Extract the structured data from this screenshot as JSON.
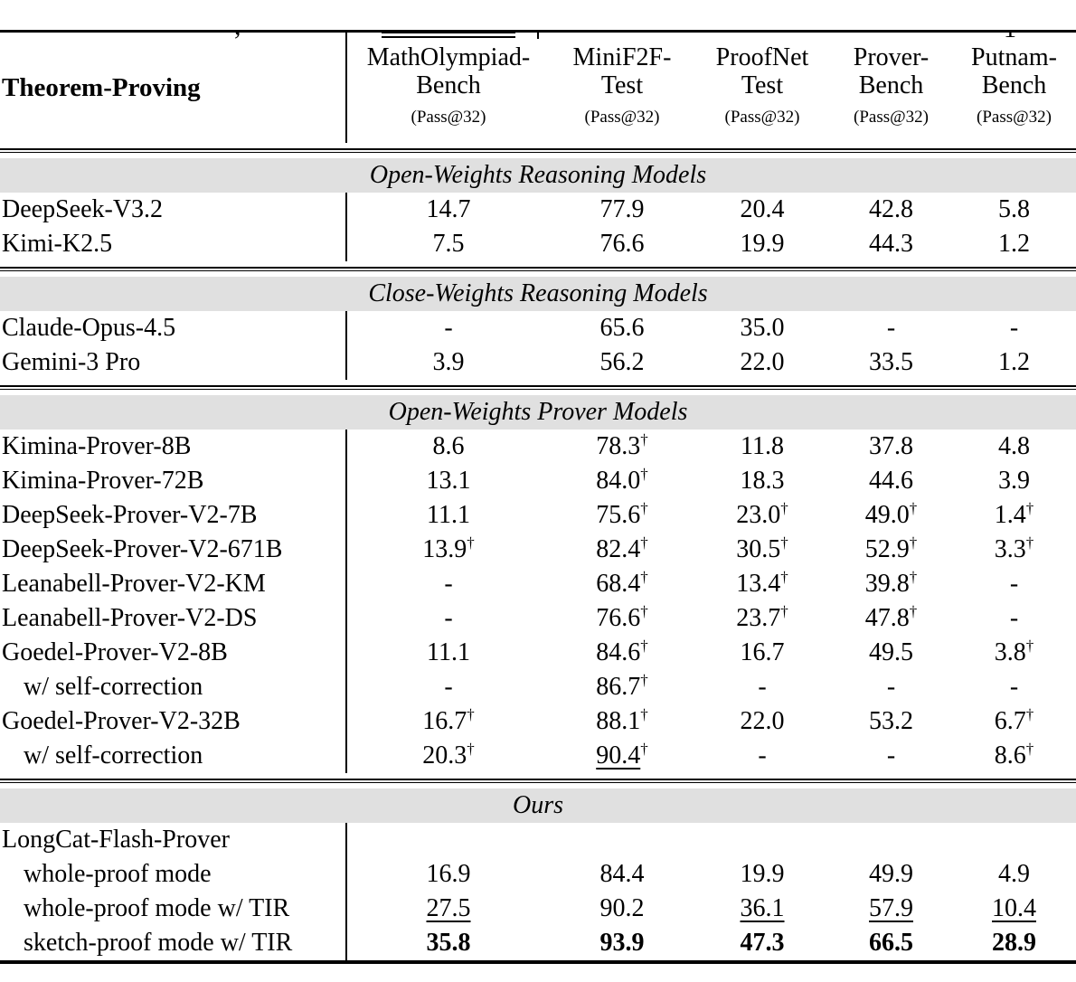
{
  "fragments": {
    "comma": ",",
    "letter": "1"
  },
  "colors": {
    "band_bg": "#e0e0e0",
    "rule": "#000000",
    "text": "#000000"
  },
  "table": {
    "title_cell": "Theorem-Proving",
    "metric_label": "(Pass@32)",
    "dagger": "†",
    "columns": [
      {
        "name": [
          "MathOlympiad-",
          "Bench"
        ]
      },
      {
        "name": [
          "MiniF2F-",
          "Test"
        ]
      },
      {
        "name": [
          "ProofNet",
          "Test"
        ]
      },
      {
        "name": [
          "Prover-",
          "Bench"
        ]
      },
      {
        "name": [
          "Putnam-",
          "Bench"
        ]
      }
    ],
    "sections": [
      {
        "title": "Open-Weights Reasoning Models",
        "rows": [
          {
            "model": "DeepSeek-V3.2",
            "indent": 0,
            "values": [
              {
                "t": "14.7"
              },
              {
                "t": "77.9"
              },
              {
                "t": "20.4"
              },
              {
                "t": "42.8"
              },
              {
                "t": "5.8"
              }
            ]
          },
          {
            "model": "Kimi-K2.5",
            "indent": 0,
            "values": [
              {
                "t": "7.5"
              },
              {
                "t": "76.6"
              },
              {
                "t": "19.9"
              },
              {
                "t": "44.3"
              },
              {
                "t": "1.2"
              }
            ]
          }
        ]
      },
      {
        "title": "Close-Weights Reasoning Models",
        "rows": [
          {
            "model": "Claude-Opus-4.5",
            "indent": 0,
            "values": [
              {
                "t": "-"
              },
              {
                "t": "65.6"
              },
              {
                "t": "35.0"
              },
              {
                "t": "-"
              },
              {
                "t": "-"
              }
            ]
          },
          {
            "model": "Gemini-3 Pro",
            "indent": 0,
            "values": [
              {
                "t": "3.9"
              },
              {
                "t": "56.2"
              },
              {
                "t": "22.0"
              },
              {
                "t": "33.5"
              },
              {
                "t": "1.2"
              }
            ]
          }
        ]
      },
      {
        "title": "Open-Weights Prover Models",
        "rows": [
          {
            "model": "Kimina-Prover-8B",
            "indent": 0,
            "values": [
              {
                "t": "8.6"
              },
              {
                "t": "78.3",
                "d": 1
              },
              {
                "t": "11.8"
              },
              {
                "t": "37.8"
              },
              {
                "t": "4.8"
              }
            ]
          },
          {
            "model": "Kimina-Prover-72B",
            "indent": 0,
            "values": [
              {
                "t": "13.1"
              },
              {
                "t": "84.0",
                "d": 1
              },
              {
                "t": "18.3"
              },
              {
                "t": "44.6"
              },
              {
                "t": "3.9"
              }
            ]
          },
          {
            "model": "DeepSeek-Prover-V2-7B",
            "indent": 0,
            "values": [
              {
                "t": "11.1"
              },
              {
                "t": "75.6",
                "d": 1
              },
              {
                "t": "23.0",
                "d": 1
              },
              {
                "t": "49.0",
                "d": 1
              },
              {
                "t": "1.4",
                "d": 1
              }
            ]
          },
          {
            "model": "DeepSeek-Prover-V2-671B",
            "indent": 0,
            "values": [
              {
                "t": "13.9",
                "d": 1
              },
              {
                "t": "82.4",
                "d": 1
              },
              {
                "t": "30.5",
                "d": 1
              },
              {
                "t": "52.9",
                "d": 1
              },
              {
                "t": "3.3",
                "d": 1
              }
            ]
          },
          {
            "model": "Leanabell-Prover-V2-KM",
            "indent": 0,
            "values": [
              {
                "t": "-"
              },
              {
                "t": "68.4",
                "d": 1
              },
              {
                "t": "13.4",
                "d": 1
              },
              {
                "t": "39.8",
                "d": 1
              },
              {
                "t": "-"
              }
            ]
          },
          {
            "model": "Leanabell-Prover-V2-DS",
            "indent": 0,
            "values": [
              {
                "t": "-"
              },
              {
                "t": "76.6",
                "d": 1
              },
              {
                "t": "23.7",
                "d": 1
              },
              {
                "t": "47.8",
                "d": 1
              },
              {
                "t": "-"
              }
            ]
          },
          {
            "model": "Goedel-Prover-V2-8B",
            "indent": 0,
            "values": [
              {
                "t": "11.1"
              },
              {
                "t": "84.6",
                "d": 1
              },
              {
                "t": "16.7"
              },
              {
                "t": "49.5"
              },
              {
                "t": "3.8",
                "d": 1
              }
            ]
          },
          {
            "model": "w/ self-correction",
            "indent": 1,
            "values": [
              {
                "t": "-"
              },
              {
                "t": "86.7",
                "d": 1
              },
              {
                "t": "-"
              },
              {
                "t": "-"
              },
              {
                "t": "-"
              }
            ]
          },
          {
            "model": "Goedel-Prover-V2-32B",
            "indent": 0,
            "values": [
              {
                "t": "16.7",
                "d": 1
              },
              {
                "t": "88.1",
                "d": 1
              },
              {
                "t": "22.0"
              },
              {
                "t": "53.2"
              },
              {
                "t": "6.7",
                "d": 1
              }
            ]
          },
          {
            "model": "w/ self-correction",
            "indent": 1,
            "values": [
              {
                "t": "20.3",
                "d": 1
              },
              {
                "t": "90.4",
                "d": 1,
                "u": 1
              },
              {
                "t": "-"
              },
              {
                "t": "-"
              },
              {
                "t": "8.6",
                "d": 1
              }
            ]
          }
        ]
      },
      {
        "title": "Ours",
        "rows": [
          {
            "model": "LongCat-Flash-Prover",
            "indent": 0,
            "values": [
              {
                "t": ""
              },
              {
                "t": ""
              },
              {
                "t": ""
              },
              {
                "t": ""
              },
              {
                "t": ""
              }
            ]
          },
          {
            "model": "whole-proof mode",
            "indent": 1,
            "values": [
              {
                "t": "16.9"
              },
              {
                "t": "84.4"
              },
              {
                "t": "19.9"
              },
              {
                "t": "49.9"
              },
              {
                "t": "4.9"
              }
            ]
          },
          {
            "model": "whole-proof mode w/ TIR",
            "indent": 1,
            "values": [
              {
                "t": "27.5",
                "u": 1
              },
              {
                "t": "90.2"
              },
              {
                "t": "36.1",
                "u": 1
              },
              {
                "t": "57.9",
                "u": 1
              },
              {
                "t": "10.4",
                "u": 1
              }
            ]
          },
          {
            "model": "sketch-proof mode w/ TIR",
            "indent": 1,
            "values": [
              {
                "t": "35.8",
                "b": 1
              },
              {
                "t": "93.9",
                "b": 1
              },
              {
                "t": "47.3",
                "b": 1
              },
              {
                "t": "66.5",
                "b": 1
              },
              {
                "t": "28.9",
                "b": 1
              }
            ]
          }
        ]
      }
    ]
  }
}
